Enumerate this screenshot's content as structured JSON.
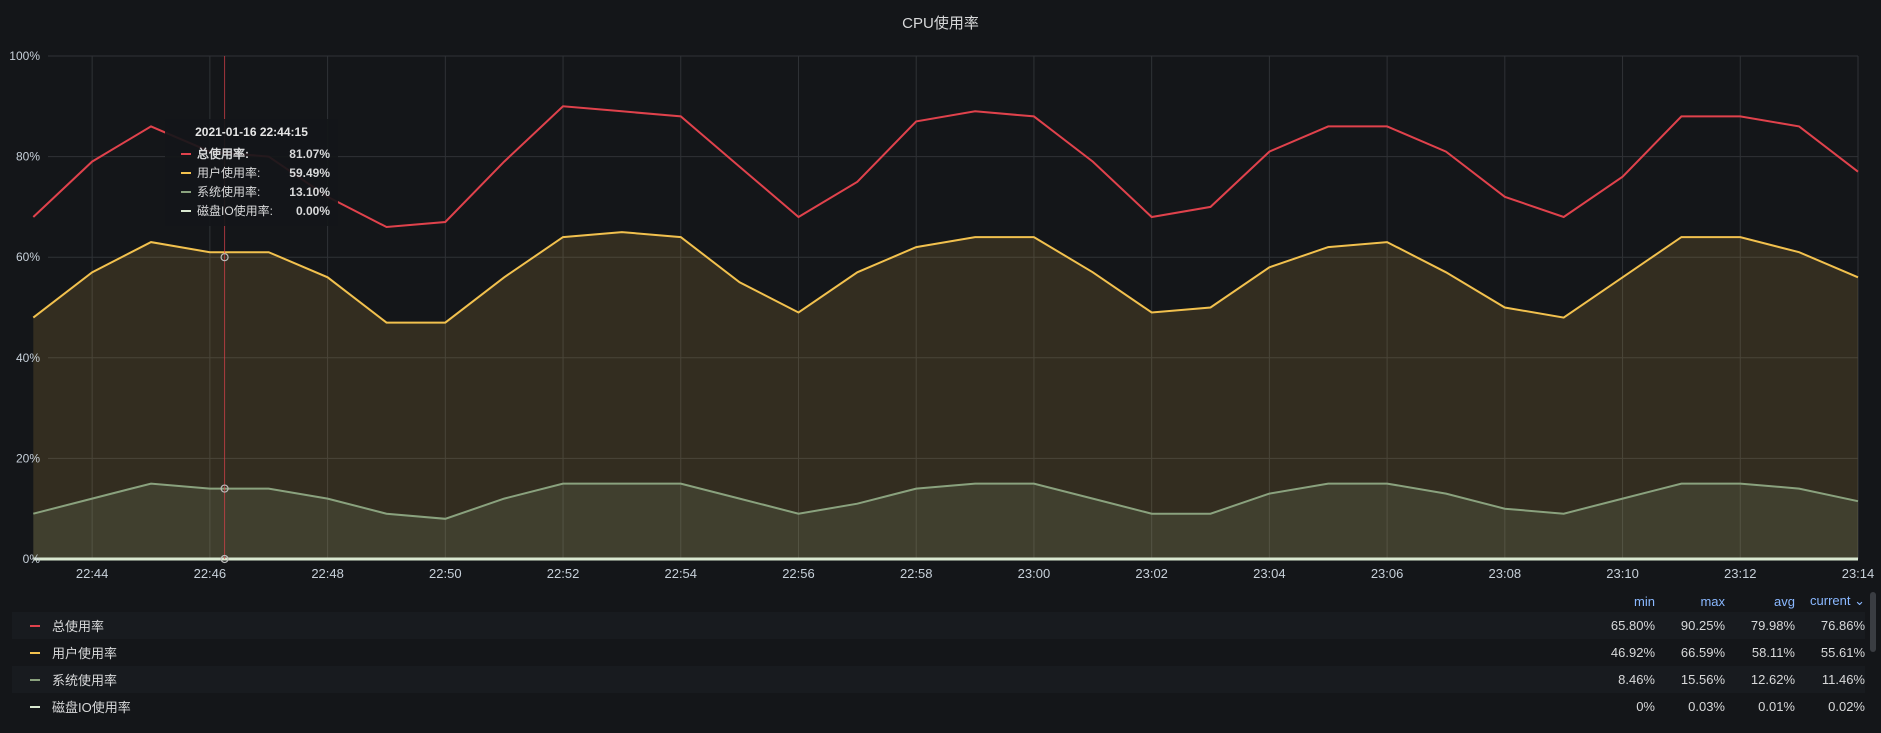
{
  "panel": {
    "title": "CPU使用率"
  },
  "tooltip": {
    "time": "2021-01-16 22:44:15",
    "rows": [
      {
        "name": "总使用率:",
        "value": "81.07%"
      },
      {
        "name": "用户使用率:",
        "value": "59.49%"
      },
      {
        "name": "系统使用率:",
        "value": "13.10%"
      },
      {
        "name": "磁盘IO使用率:",
        "value": "0.00%"
      }
    ]
  },
  "legend": {
    "headers": {
      "min": "min",
      "max": "max",
      "avg": "avg",
      "current": "current ⌄"
    },
    "rows": [
      {
        "name": "总使用率",
        "min": "65.80%",
        "max": "90.25%",
        "avg": "79.98%",
        "current": "76.86%"
      },
      {
        "name": "用户使用率",
        "min": "46.92%",
        "max": "66.59%",
        "avg": "58.11%",
        "current": "55.61%"
      },
      {
        "name": "系统使用率",
        "min": "8.46%",
        "max": "15.56%",
        "avg": "12.62%",
        "current": "11.46%"
      },
      {
        "name": "磁盘IO使用率",
        "min": "0%",
        "max": "0.03%",
        "avg": "0.01%",
        "current": "0.02%"
      }
    ]
  },
  "colors": {
    "total": "#e0424c",
    "user": "#f2c14e",
    "system": "#8aa27e",
    "disk": "#d9e8d0"
  },
  "chart_data": {
    "type": "area",
    "title": "CPU使用率",
    "x_tick_labels": [
      "22:44",
      "22:46",
      "22:48",
      "22:50",
      "22:52",
      "22:54",
      "22:56",
      "22:58",
      "23:00",
      "23:02",
      "23:04",
      "23:06",
      "23:08",
      "23:10",
      "23:12",
      "23:14"
    ],
    "y_tick_labels": [
      "0%",
      "20%",
      "40%",
      "60%",
      "80%",
      "100%"
    ],
    "x_range_minutes": [
      "22:43",
      "23:14"
    ],
    "ylim": [
      0,
      100
    ],
    "grid": true,
    "x": [
      "22:43",
      "22:44",
      "22:45",
      "22:46",
      "22:47",
      "22:48",
      "22:49",
      "22:50",
      "22:51",
      "22:52",
      "22:53",
      "22:54",
      "22:55",
      "22:56",
      "22:57",
      "22:58",
      "22:59",
      "23:00",
      "23:01",
      "23:02",
      "23:03",
      "23:04",
      "23:05",
      "23:06",
      "23:07",
      "23:08",
      "23:09",
      "23:10",
      "23:11",
      "23:12",
      "23:13",
      "23:14"
    ],
    "series": [
      {
        "name": "总使用率",
        "values": [
          68,
          79,
          86,
          81,
          80,
          72,
          66,
          67,
          79,
          90,
          89,
          88,
          78,
          68,
          75,
          87,
          89,
          88,
          79,
          68,
          70,
          81,
          86,
          86,
          81,
          72,
          68,
          76,
          88,
          88,
          86,
          77
        ]
      },
      {
        "name": "用户使用率",
        "values": [
          48,
          57,
          63,
          61,
          61,
          56,
          47,
          47,
          56,
          64,
          65,
          64,
          55,
          49,
          57,
          62,
          64,
          64,
          57,
          49,
          50,
          58,
          62,
          63,
          57,
          50,
          48,
          56,
          64,
          64,
          61,
          56
        ]
      },
      {
        "name": "系统使用率",
        "values": [
          9,
          12,
          15,
          14,
          14,
          12,
          9,
          8,
          12,
          15,
          15,
          15,
          12,
          9,
          11,
          14,
          15,
          15,
          12,
          9,
          9,
          13,
          15,
          15,
          13,
          10,
          9,
          12,
          15,
          15,
          14,
          11.5
        ]
      },
      {
        "name": "磁盘IO使用率",
        "values": [
          0,
          0,
          0,
          0,
          0,
          0,
          0,
          0,
          0,
          0,
          0,
          0,
          0,
          0,
          0,
          0,
          0,
          0,
          0,
          0,
          0,
          0,
          0,
          0,
          0,
          0,
          0,
          0,
          0,
          0,
          0,
          0
        ]
      }
    ]
  }
}
